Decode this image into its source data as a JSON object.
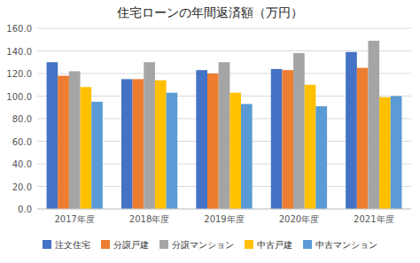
{
  "chart_data": {
    "type": "bar",
    "title": "住宅ローンの年間返済額（万円）",
    "categories": [
      "2017年度",
      "2018年度",
      "2019年度",
      "2020年度",
      "2021年度"
    ],
    "series": [
      {
        "name": "注文住宅",
        "color": "#4472c4",
        "values": [
          130,
          115,
          123,
          124,
          139
        ]
      },
      {
        "name": "分譲戸建",
        "color": "#ed7d31",
        "values": [
          118,
          115,
          120,
          123,
          125
        ]
      },
      {
        "name": "分譲マンション",
        "color": "#a5a5a5",
        "values": [
          122,
          130,
          130,
          138,
          149
        ]
      },
      {
        "name": "中古戸建",
        "color": "#ffc000",
        "values": [
          108,
          114,
          103,
          110,
          99
        ]
      },
      {
        "name": "中古マンション",
        "color": "#5b9bd5",
        "values": [
          95,
          103,
          93,
          91,
          100
        ]
      }
    ],
    "ylim": [
      0,
      160
    ],
    "yticks": [
      {
        "value": 0,
        "label": "0.0"
      },
      {
        "value": 20,
        "label": "20.0"
      },
      {
        "value": 40,
        "label": "40.0"
      },
      {
        "value": 60,
        "label": "60.0"
      },
      {
        "value": 80,
        "label": "80.0"
      },
      {
        "value": 100,
        "label": "100.0"
      },
      {
        "value": 120,
        "label": "120.0"
      },
      {
        "value": 140,
        "label": "140.0"
      },
      {
        "value": 160,
        "label": "160.0"
      }
    ],
    "grid": true,
    "legend": "bottom"
  }
}
